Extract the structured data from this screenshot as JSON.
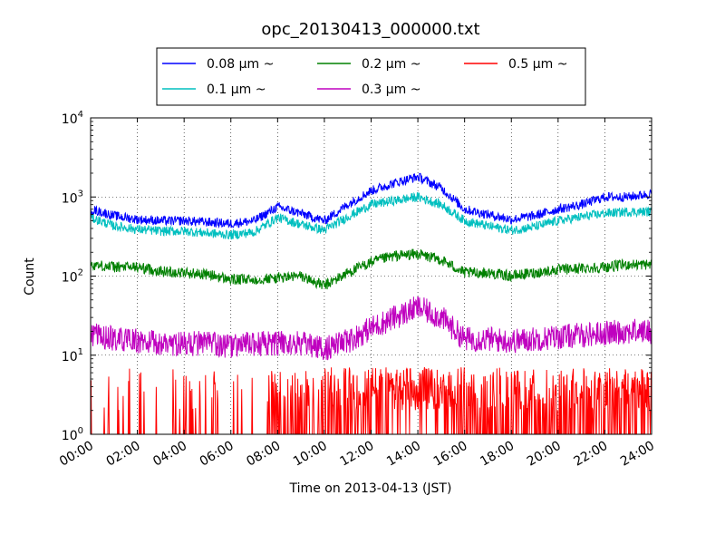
{
  "chart_data": {
    "type": "line",
    "title": "opc_20130413_000000.txt",
    "xlabel": "Time on 2013-04-13 (JST)",
    "ylabel": "Count",
    "x_range": [
      "00:00",
      "24:00"
    ],
    "x_ticks": [
      "00:00",
      "02:00",
      "04:00",
      "06:00",
      "08:00",
      "10:00",
      "12:00",
      "14:00",
      "16:00",
      "18:00",
      "20:00",
      "22:00",
      "24:00"
    ],
    "y_scale": "log",
    "ylim": [
      1,
      10000
    ],
    "y_ticks": [
      {
        "base": "10",
        "exp": "0"
      },
      {
        "base": "10",
        "exp": "1"
      },
      {
        "base": "10",
        "exp": "2"
      },
      {
        "base": "10",
        "exp": "3"
      },
      {
        "base": "10",
        "exp": "4"
      }
    ],
    "grid": true,
    "legend_position": "above plot, centered",
    "hours": [
      0,
      1,
      2,
      3,
      4,
      5,
      6,
      7,
      8,
      9,
      10,
      11,
      12,
      13,
      14,
      15,
      16,
      17,
      18,
      19,
      20,
      21,
      22,
      23,
      24
    ],
    "series": [
      {
        "name": "0.08 μm ~",
        "color": "#0000ff",
        "values": [
          700,
          580,
          520,
          500,
          500,
          480,
          460,
          500,
          750,
          620,
          500,
          800,
          1200,
          1500,
          1800,
          1300,
          700,
          600,
          520,
          580,
          700,
          800,
          1000,
          1000,
          1100
        ]
      },
      {
        "name": "0.1 μm ~",
        "color": "#00bfbf",
        "values": [
          550,
          430,
          390,
          370,
          370,
          350,
          330,
          360,
          550,
          450,
          380,
          560,
          800,
          900,
          1000,
          800,
          500,
          430,
          380,
          420,
          500,
          560,
          620,
          650,
          650
        ]
      },
      {
        "name": "0.2 μm ~",
        "color": "#008000",
        "values": [
          140,
          130,
          130,
          115,
          110,
          105,
          90,
          90,
          95,
          100,
          75,
          110,
          150,
          180,
          190,
          160,
          110,
          110,
          100,
          110,
          120,
          125,
          130,
          140,
          140
        ]
      },
      {
        "name": "0.3 μm ~",
        "color": "#bf00bf",
        "values": [
          18,
          16,
          15,
          14,
          14,
          14,
          13,
          14,
          14,
          14,
          12,
          15,
          22,
          30,
          40,
          30,
          16,
          16,
          15,
          16,
          17,
          18,
          19,
          20,
          20
        ]
      },
      {
        "name": "0.5 μm ~",
        "color": "#ff0000",
        "values": [
          1,
          1,
          1,
          1,
          1,
          1,
          1,
          1,
          1.5,
          1.5,
          1.3,
          1.6,
          1.8,
          2.2,
          2.5,
          2.1,
          1.7,
          1.5,
          1.5,
          1.6,
          1.6,
          1.8,
          1.8,
          2,
          2
        ]
      }
    ]
  }
}
